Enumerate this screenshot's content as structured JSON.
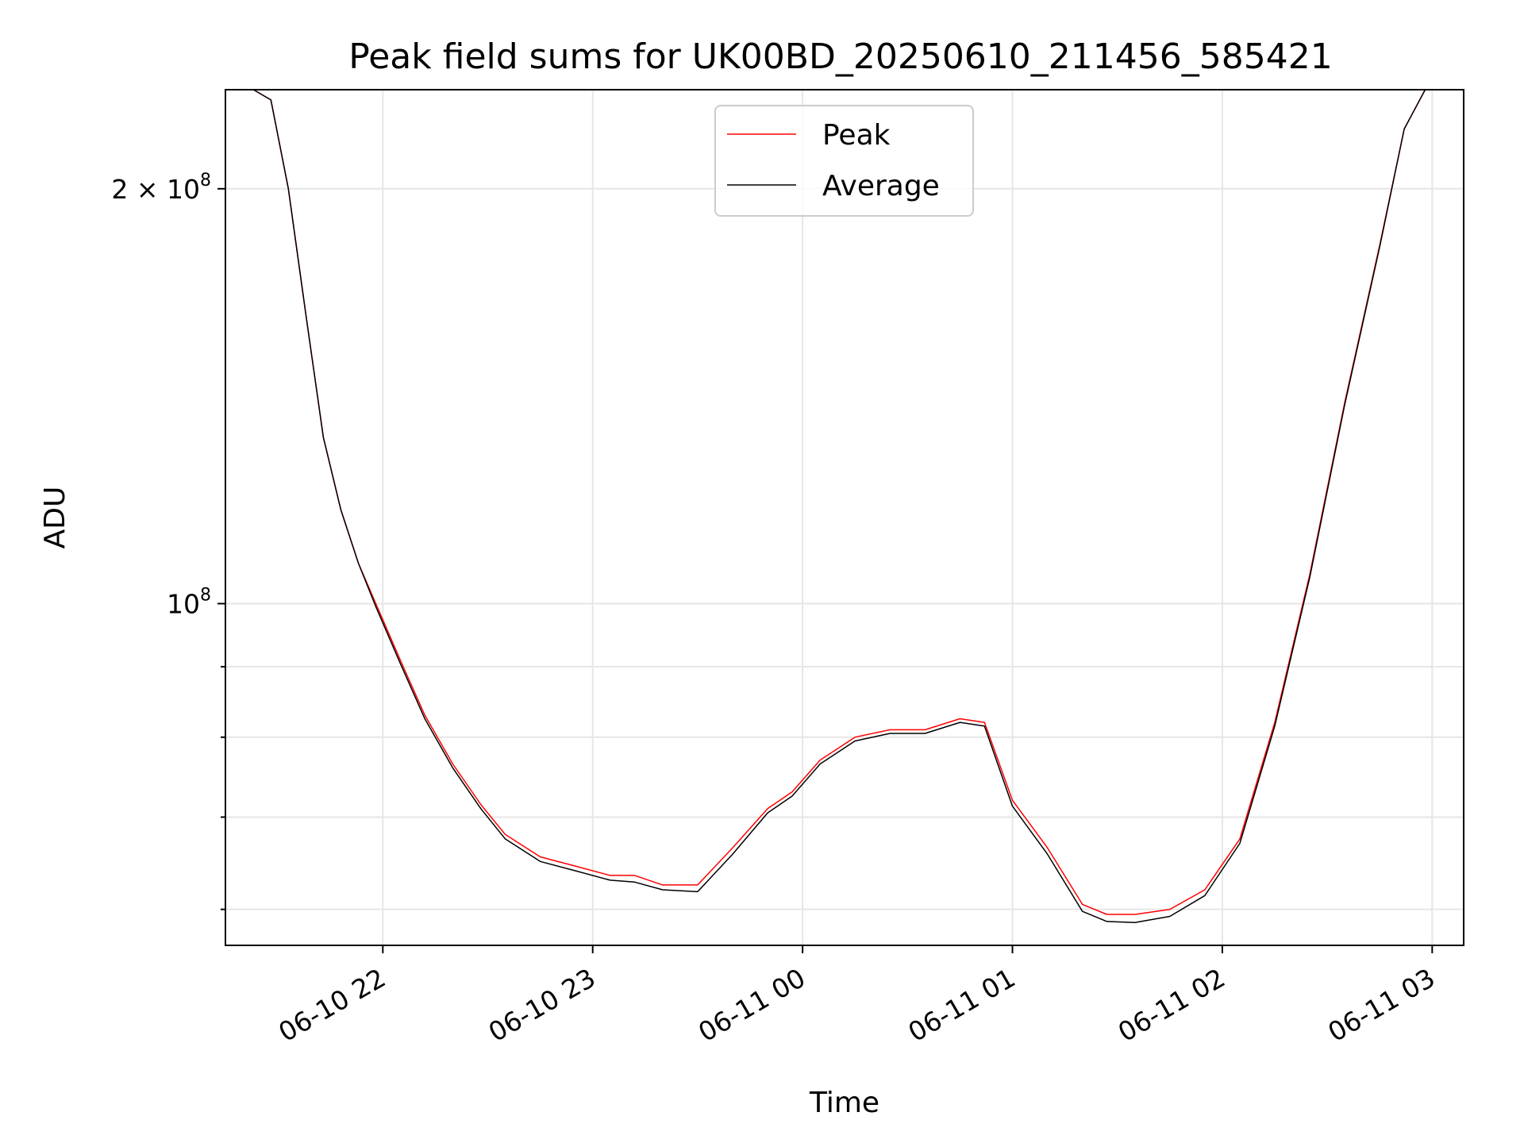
{
  "chart_data": {
    "type": "line",
    "title": "Peak field sums for UK00BD_20250610_211456_585421",
    "xlabel": "Time",
    "ylabel": "ADU",
    "yscale": "log",
    "grid": true,
    "legend_position": "top-center",
    "x_ticks": [
      {
        "value": "2025-06-10 22:00",
        "label": "06-10 22"
      },
      {
        "value": "2025-06-10 23:00",
        "label": "06-10 23"
      },
      {
        "value": "2025-06-11 00:00",
        "label": "06-11 00"
      },
      {
        "value": "2025-06-11 01:00",
        "label": "06-11 01"
      },
      {
        "value": "2025-06-11 02:00",
        "label": "06-11 02"
      },
      {
        "value": "2025-06-11 03:00",
        "label": "06-11 03"
      }
    ],
    "y_ticks": [
      {
        "value": 100000000,
        "mantissa": "",
        "base": "10",
        "exp": "8"
      },
      {
        "value": 200000000,
        "mantissa": "2 × ",
        "base": "10",
        "exp": "8"
      }
    ],
    "y_minor_ticks": [
      60000000,
      70000000,
      80000000,
      90000000
    ],
    "xlim": [
      "2025-06-10 21:15",
      "2025-06-11 03:09"
    ],
    "ylim": [
      56500000,
      236000000
    ],
    "series": [
      {
        "name": "Peak",
        "color": "#ff0000",
        "x": [
          "2025-06-10 21:15",
          "2025-06-10 21:23",
          "2025-06-10 21:28",
          "2025-06-10 21:33",
          "2025-06-10 21:38",
          "2025-06-10 21:43",
          "2025-06-10 21:48",
          "2025-06-10 21:53",
          "2025-06-10 21:58",
          "2025-06-10 22:05",
          "2025-06-10 22:12",
          "2025-06-10 22:20",
          "2025-06-10 22:28",
          "2025-06-10 22:35",
          "2025-06-10 22:45",
          "2025-06-10 22:55",
          "2025-06-10 23:05",
          "2025-06-10 23:12",
          "2025-06-10 23:20",
          "2025-06-10 23:30",
          "2025-06-10 23:40",
          "2025-06-10 23:50",
          "2025-06-10 23:57",
          "2025-06-11 00:05",
          "2025-06-11 00:15",
          "2025-06-11 00:25",
          "2025-06-11 00:35",
          "2025-06-11 00:45",
          "2025-06-11 00:52",
          "2025-06-11 01:00",
          "2025-06-11 01:10",
          "2025-06-11 01:20",
          "2025-06-11 01:27",
          "2025-06-11 01:35",
          "2025-06-11 01:45",
          "2025-06-11 01:55",
          "2025-06-11 02:05",
          "2025-06-11 02:15",
          "2025-06-11 02:25",
          "2025-06-11 02:35",
          "2025-06-11 02:45",
          "2025-06-11 02:52",
          "2025-06-11 02:58",
          "2025-06-11 03:09"
        ],
        "values": [
          236000000,
          236000000,
          232000000,
          200000000,
          162000000,
          132000000,
          117000000,
          107000000,
          100000000,
          91000000,
          83000000,
          76500000,
          71500000,
          68000000,
          65500000,
          64500000,
          63500000,
          63500000,
          62500000,
          62500000,
          66500000,
          71000000,
          73000000,
          77000000,
          80000000,
          81000000,
          81000000,
          82500000,
          82000000,
          72000000,
          66500000,
          60500000,
          59500000,
          59500000,
          60000000,
          62000000,
          67500000,
          82000000,
          105000000,
          140000000,
          182000000,
          221000000,
          236000000,
          236000000
        ]
      },
      {
        "name": "Average",
        "color": "#000000",
        "x": [
          "2025-06-10 21:15",
          "2025-06-10 21:23",
          "2025-06-10 21:28",
          "2025-06-10 21:33",
          "2025-06-10 21:38",
          "2025-06-10 21:43",
          "2025-06-10 21:48",
          "2025-06-10 21:53",
          "2025-06-10 21:58",
          "2025-06-10 22:05",
          "2025-06-10 22:12",
          "2025-06-10 22:20",
          "2025-06-10 22:28",
          "2025-06-10 22:35",
          "2025-06-10 22:45",
          "2025-06-10 22:55",
          "2025-06-10 23:05",
          "2025-06-10 23:12",
          "2025-06-10 23:20",
          "2025-06-10 23:30",
          "2025-06-10 23:40",
          "2025-06-10 23:50",
          "2025-06-10 23:57",
          "2025-06-11 00:05",
          "2025-06-11 00:15",
          "2025-06-11 00:25",
          "2025-06-11 00:35",
          "2025-06-11 00:45",
          "2025-06-11 00:52",
          "2025-06-11 01:00",
          "2025-06-11 01:10",
          "2025-06-11 01:20",
          "2025-06-11 01:27",
          "2025-06-11 01:35",
          "2025-06-11 01:45",
          "2025-06-11 01:55",
          "2025-06-11 02:05",
          "2025-06-11 02:15",
          "2025-06-11 02:25",
          "2025-06-11 02:35",
          "2025-06-11 02:45",
          "2025-06-11 02:52",
          "2025-06-11 02:58",
          "2025-06-11 03:09"
        ],
        "values": [
          236000000,
          236000000,
          232000000,
          200000000,
          162000000,
          132000000,
          117000000,
          107000000,
          99500000,
          90500000,
          82500000,
          76000000,
          71000000,
          67500000,
          65000000,
          64000000,
          63000000,
          62800000,
          62000000,
          61800000,
          65800000,
          70500000,
          72500000,
          76500000,
          79500000,
          80500000,
          80500000,
          82000000,
          81500000,
          71300000,
          65800000,
          59800000,
          58800000,
          58700000,
          59300000,
          61400000,
          67000000,
          81500000,
          104500000,
          139500000,
          181500000,
          221000000,
          236000000,
          236000000
        ]
      }
    ]
  }
}
